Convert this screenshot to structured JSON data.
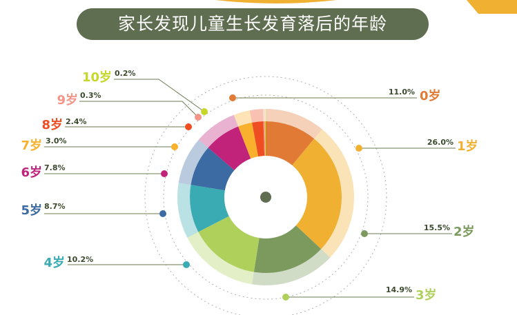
{
  "title": "家长发现儿童生长发育落后的年龄",
  "colors": {
    "title_bg": "#5f6e50",
    "leader_line": "#6b7a52",
    "center_dot": "#5f6e50"
  },
  "chart_data": {
    "type": "pie",
    "variant": "donut",
    "categories": [
      "0岁",
      "1岁",
      "2岁",
      "3岁",
      "4岁",
      "5岁",
      "6岁",
      "7岁",
      "8岁",
      "9岁",
      "10岁"
    ],
    "values": [
      11.0,
      26.0,
      15.5,
      14.9,
      10.2,
      8.7,
      7.8,
      3.0,
      2.4,
      0.3,
      0.2
    ],
    "value_labels": [
      "11.0%",
      "26.0%",
      "15.5%",
      "14.9%",
      "10.2%",
      "8.7%",
      "7.8%",
      "3.0%",
      "2.4%",
      "0.3%",
      "0.2%"
    ],
    "colors": [
      "#e07a35",
      "#f0b032",
      "#7c9a5e",
      "#afd15c",
      "#3aabb3",
      "#3c6aa3",
      "#c2237a",
      "#f9b02d",
      "#ef4e23",
      "#f49587",
      "#c6d72a"
    ],
    "unit": "%"
  }
}
